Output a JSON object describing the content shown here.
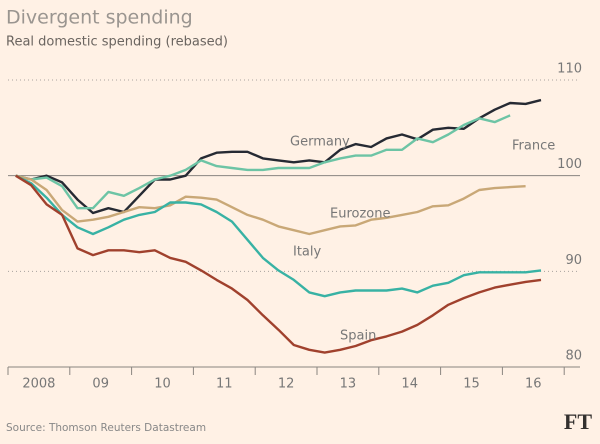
{
  "chart_data": {
    "type": "line",
    "title": "Divergent spending",
    "subtitle": "Real domestic spending (rebased)",
    "source": "Source: Thomson Reuters Datastream",
    "logo": "FT",
    "categories": [
      "2008",
      null,
      null,
      null,
      "09",
      null,
      null,
      null,
      "10",
      null,
      null,
      null,
      "11",
      null,
      null,
      null,
      "12",
      null,
      null,
      null,
      "13",
      null,
      null,
      null,
      "14",
      null,
      null,
      null,
      "15",
      null,
      null,
      null,
      "16",
      null,
      null
    ],
    "series": [
      {
        "name": "Germany",
        "color": "#262a33",
        "values": [
          100,
          99.6,
          100,
          99.3,
          97.5,
          96.1,
          96.6,
          96.2,
          97.9,
          99.6,
          99.6,
          100,
          101.8,
          102.4,
          102.5,
          102.5,
          101.8,
          101.6,
          101.4,
          101.6,
          101.4,
          102.7,
          103.3,
          103.0,
          103.9,
          104.3,
          103.8,
          104.8,
          105.0,
          104.9,
          106.0,
          106.9,
          107.6,
          107.5,
          107.9
        ]
      },
      {
        "name": "France",
        "color": "#6dc4a5",
        "values": [
          100,
          99.6,
          99.8,
          98.9,
          96.6,
          96.6,
          98.3,
          97.9,
          98.7,
          99.6,
          100,
          100.6,
          101.6,
          101.0,
          100.8,
          100.6,
          100.6,
          100.8,
          100.8,
          100.8,
          101.4,
          101.8,
          102.1,
          102.1,
          102.7,
          102.7,
          103.9,
          103.5,
          104.3,
          105.3,
          106.0,
          105.6,
          106.3,
          null,
          null
        ]
      },
      {
        "name": "Eurozone",
        "color": "#c9a877",
        "values": [
          100,
          99.6,
          98.5,
          96.4,
          95.2,
          95.4,
          95.7,
          96.2,
          96.7,
          96.6,
          96.9,
          97.8,
          97.7,
          97.5,
          96.7,
          95.9,
          95.4,
          94.7,
          94.3,
          93.9,
          94.3,
          94.7,
          94.8,
          95.4,
          95.6,
          95.9,
          96.2,
          96.8,
          96.9,
          97.6,
          98.5,
          98.7,
          98.8,
          98.9,
          null
        ]
      },
      {
        "name": "Italy",
        "color": "#38b2a4",
        "values": [
          100,
          99.2,
          97.7,
          95.9,
          94.6,
          93.9,
          94.6,
          95.4,
          95.9,
          96.2,
          97.2,
          97.2,
          97.0,
          96.2,
          95.2,
          93.3,
          91.4,
          90.1,
          89.1,
          87.8,
          87.4,
          87.8,
          88.0,
          88.0,
          88.0,
          88.2,
          87.8,
          88.5,
          88.8,
          89.6,
          89.9,
          89.9,
          89.9,
          89.9,
          90.1
        ]
      },
      {
        "name": "Spain",
        "color": "#a0412d",
        "values": [
          100,
          99.0,
          97.0,
          95.9,
          92.4,
          91.7,
          92.2,
          92.2,
          92.0,
          92.2,
          91.4,
          91.0,
          90.1,
          89.1,
          88.2,
          87.0,
          85.4,
          83.9,
          82.3,
          81.8,
          81.5,
          81.8,
          82.2,
          82.8,
          83.2,
          83.7,
          84.4,
          85.4,
          86.5,
          87.2,
          87.8,
          88.3,
          88.6,
          88.9,
          89.1
        ]
      }
    ],
    "ylim": [
      80,
      110
    ],
    "yticks": [
      80,
      90,
      100,
      110
    ],
    "grid": true
  }
}
